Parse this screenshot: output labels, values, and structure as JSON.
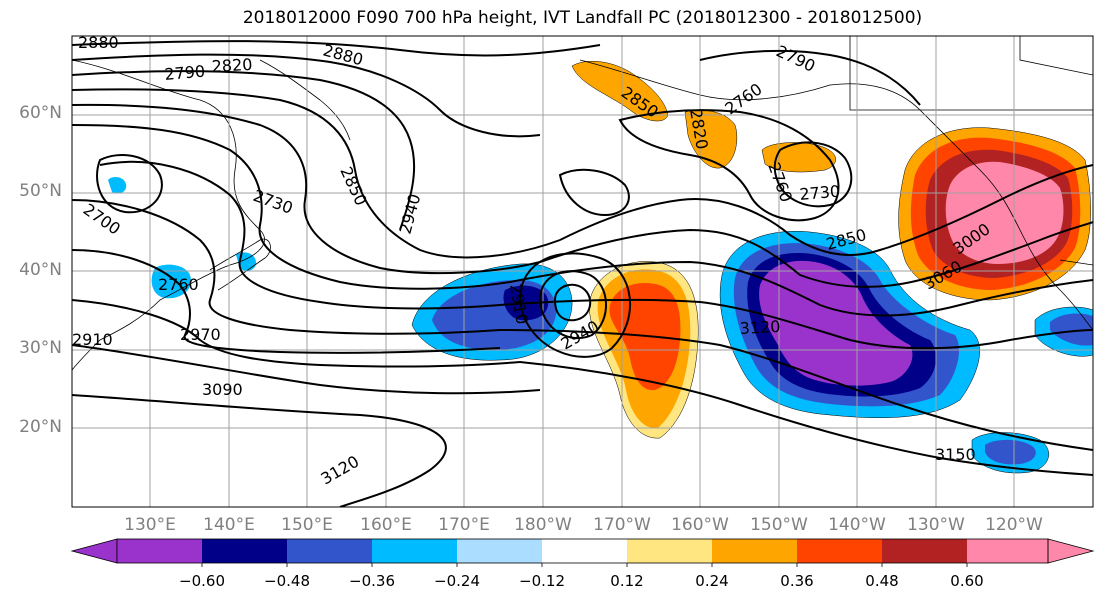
{
  "title": "2018012000 F090 700 hPa height, IVT Landfall PC (2018012300 - 2018012500)",
  "lat_labels": [
    "60°N",
    "50°N",
    "40°N",
    "30°N",
    "20°N"
  ],
  "lon_labels": [
    "130°E",
    "140°E",
    "150°E",
    "160°E",
    "170°E",
    "180°W",
    "170°W",
    "160°W",
    "150°W",
    "140°W",
    "130°W",
    "120°W"
  ],
  "contour_labels": [
    "2880",
    "2790",
    "2820",
    "2880",
    "2790",
    "2700",
    "2730",
    "2850",
    "2940",
    "2760",
    "2970",
    "2910",
    "2940",
    "3090",
    "3120",
    "2850",
    "2820",
    "2760",
    "2760",
    "2730",
    "2850",
    "3120",
    "3000",
    "3060",
    "3150",
    "2910"
  ],
  "colorbar": {
    "ticks": [
      "−0.60",
      "−0.48",
      "−0.36",
      "−0.24",
      "−0.12",
      "0.12",
      "0.24",
      "0.36",
      "0.48",
      "0.60"
    ],
    "colors": [
      "#9933cc",
      "#000088",
      "#3355cc",
      "#00bbff",
      "#aaddff",
      "#ffffff",
      "#ffe680",
      "#ffa500",
      "#ff4400",
      "#b22222",
      "#ff88aa"
    ]
  }
}
